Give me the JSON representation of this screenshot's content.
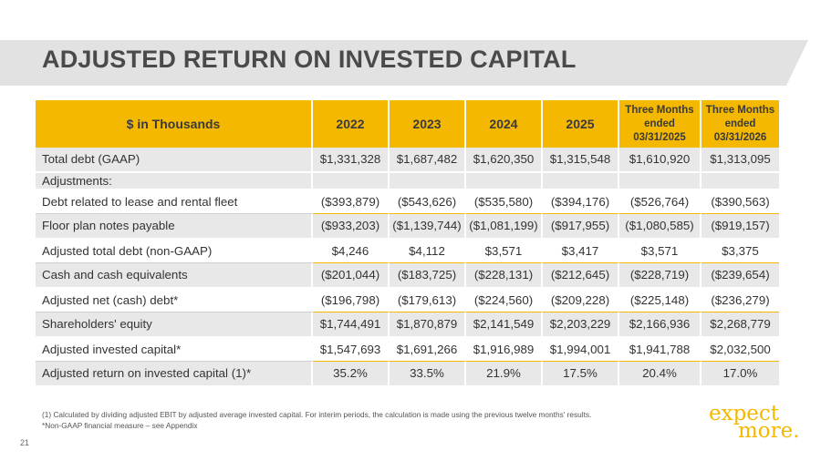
{
  "slide": {
    "title": "ADJUSTED RETURN ON INVESTED CAPITAL",
    "page_number": "21"
  },
  "table": {
    "header": {
      "label": "$ in Thousands",
      "y2022": "2022",
      "y2023": "2023",
      "y2024": "2024",
      "y2025": "2025",
      "tm2025": "Three Months ended 03/31/2025",
      "tm2026": "Three Months ended 03/31/2026"
    },
    "rows": [
      {
        "label": "Total debt (GAAP)",
        "values": [
          "$1,331,328",
          "$1,687,482",
          "$1,620,350",
          "$1,315,548",
          "$1,610,920",
          "$1,313,095"
        ]
      },
      {
        "label": "Adjustments:",
        "values": [
          "",
          "",
          "",
          "",
          "",
          ""
        ]
      },
      {
        "label": "Debt related to lease and rental fleet",
        "values": [
          "($393,879)",
          "($543,626)",
          "($535,580)",
          "($394,176)",
          "($526,764)",
          "($390,563)"
        ]
      },
      {
        "label": "Floor plan notes payable",
        "values": [
          "($933,203)",
          "($1,139,744)",
          "($1,081,199)",
          "($917,955)",
          "($1,080,585)",
          "($919,157)"
        ]
      },
      {
        "label": "Adjusted total debt (non-GAAP)",
        "values": [
          "$4,246",
          "$4,112",
          "$3,571",
          "$3,417",
          "$3,571",
          "$3,375"
        ]
      },
      {
        "label": "Cash and cash equivalents",
        "values": [
          "($201,044)",
          "($183,725)",
          "($228,131)",
          "($212,645)",
          "($228,719)",
          "($239,654)"
        ]
      },
      {
        "label": "Adjusted net (cash) debt*",
        "values": [
          "($196,798)",
          "($179,613)",
          "($224,560)",
          "($209,228)",
          "($225,148)",
          "($236,279)"
        ]
      },
      {
        "label": "Shareholders' equity",
        "values": [
          "$1,744,491",
          "$1,870,879",
          "$2,141,549",
          "$2,203,229",
          "$2,166,936",
          "$2,268,779"
        ]
      },
      {
        "label": "Adjusted invested capital*",
        "values": [
          "$1,547,693",
          "$1,691,266",
          "$1,916,989",
          "$1,994,001",
          "$1,941,788",
          "$2,032,500"
        ]
      },
      {
        "label": "Adjusted return on invested capital (1)*",
        "values": [
          "35.2%",
          "33.5%",
          "21.9%",
          "17.5%",
          "20.4%",
          "17.0%"
        ]
      }
    ]
  },
  "footnotes": {
    "note1": "(1)  Calculated by dividing adjusted EBIT by adjusted average invested capital.  For interim periods, the calculation is made using the previous twelve months' results.",
    "note2": "*Non-GAAP financial measure – see Appendix"
  },
  "logo": {
    "line1": "expect",
    "line2": "more."
  },
  "colors": {
    "accent": "#f5b800",
    "banner": "#e2e2e2",
    "row_shade": "#e8e8e8",
    "title": "#4a4a4a"
  }
}
